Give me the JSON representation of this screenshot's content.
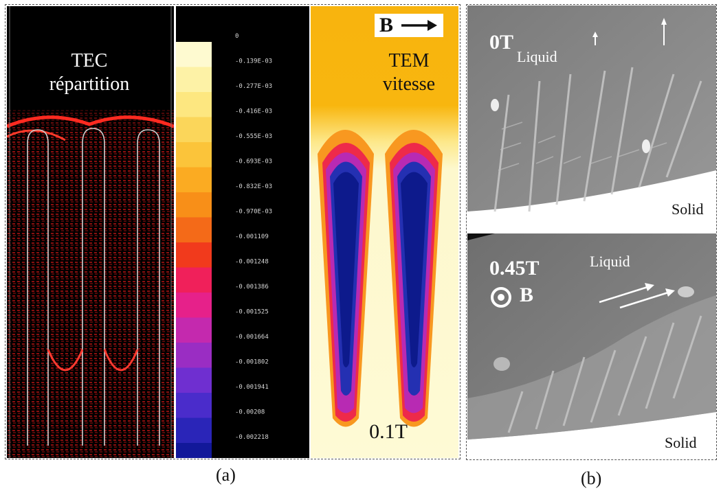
{
  "figure": {
    "panel_a": {
      "label": "(a)",
      "tec": {
        "title_line1": "TEC",
        "title_line2": "répartition"
      },
      "scale": {
        "values": [
          "0",
          "-0.139E-03",
          "-0.277E-03",
          "-0.416E-03",
          "-0.555E-03",
          "-0.693E-03",
          "-0.832E-03",
          "-0.970E-03",
          "-0.001109",
          "-0.001248",
          "-0.001386",
          "-0.001525",
          "-0.001664",
          "-0.001802",
          "-0.001941",
          "-0.00208",
          "-0.002218"
        ],
        "colors": [
          "#fefad0",
          "#fdf2a6",
          "#fde780",
          "#fbd65a",
          "#fbc43a",
          "#fbab22",
          "#f88f18",
          "#f46a18",
          "#f13a1c",
          "#f0205a",
          "#e6218a",
          "#c429ae",
          "#9a2dc3",
          "#6f2fd0",
          "#4a2ccb",
          "#2a25b8",
          "#12189a"
        ]
      },
      "tem": {
        "title_line1": "TEM",
        "title_line2": "vitesse",
        "b_label": "B",
        "field": "0.1T"
      }
    },
    "panel_b": {
      "label": "(b)",
      "top": {
        "field": "0T",
        "liquid": "Liquid",
        "solid": "Solid"
      },
      "bottom": {
        "field": "0.45T",
        "b_label": "B",
        "liquid": "Liquid",
        "solid": "Solid"
      }
    }
  }
}
